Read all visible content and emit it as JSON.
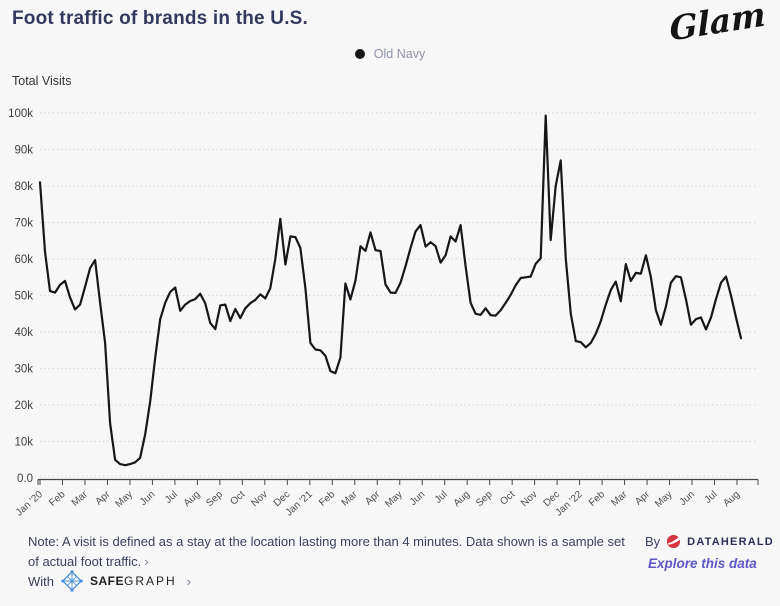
{
  "header": {
    "title": "Foot traffic of brands in the U.S.",
    "brand_logo_text": "Glam"
  },
  "legend": {
    "series_label": "Old Navy",
    "marker_color": "#17171a"
  },
  "chart_data": {
    "type": "line",
    "title": "Foot traffic of brands in the U.S.",
    "ylabel": "Total Visits",
    "x_axis": {
      "tick_labels": [
        "Jan '20",
        "Feb",
        "Mar",
        "Apr",
        "May",
        "Jun",
        "Jul",
        "Aug",
        "Sep",
        "Oct",
        "Nov",
        "Dec",
        "Jan '21",
        "Feb",
        "Mar",
        "Apr",
        "May",
        "Jun",
        "Jul",
        "Aug",
        "Sep",
        "Oct",
        "Nov",
        "Dec",
        "Jan '22",
        "Feb",
        "Mar",
        "Apr",
        "May",
        "Jun",
        "Jul",
        "Aug"
      ]
    },
    "y_axis": {
      "tick_labels": [
        "0.0",
        "10k",
        "20k",
        "30k",
        "40k",
        "50k",
        "60k",
        "70k",
        "80k",
        "90k",
        "100k"
      ],
      "min": 0,
      "max": 100,
      "unit": "thousands of visits"
    },
    "grid": {
      "horizontal_dotted": true,
      "color": "#d7d7e4"
    },
    "series": [
      {
        "name": "Old Navy",
        "color": "#17171a",
        "cadence": "weekly",
        "unit": "thousands of visits",
        "values": [
          81,
          62,
          51.2,
          50.8,
          52.9,
          54,
          49.5,
          46.2,
          47.5,
          52.4,
          57.5,
          59.7,
          48,
          37,
          15,
          5,
          3.8,
          3.5,
          3.8,
          4.3,
          5.5,
          12,
          21,
          33,
          43.5,
          48,
          51,
          52.2,
          45.8,
          47.5,
          48.5,
          49,
          50.5,
          47.9,
          42.5,
          40.8,
          47.3,
          47.5,
          43,
          46.3,
          43.8,
          46.5,
          47.9,
          48.8,
          50.3,
          49.2,
          52,
          60,
          71,
          58.5,
          66.2,
          66,
          63,
          52,
          37,
          35.2,
          35,
          33.5,
          29.3,
          28.7,
          33,
          53.3,
          48.9,
          54,
          63.5,
          62.2,
          67.3,
          62.4,
          62.2,
          53,
          50.8,
          50.7,
          53.5,
          58,
          63,
          67.5,
          69.3,
          63.4,
          64.6,
          63.5,
          59,
          61,
          66.2,
          64.8,
          69.3,
          58,
          48,
          45,
          44.7,
          46.5,
          44.6,
          44.5,
          46,
          48,
          50.2,
          52.8,
          54.8,
          55,
          55.2,
          58.7,
          60.2,
          99.3,
          65.2,
          80,
          87,
          60,
          45,
          37.5,
          37.2,
          35.8,
          37,
          39.5,
          43,
          47.5,
          51.5,
          53.8,
          48.4,
          58.6,
          54,
          56.2,
          56,
          61,
          55,
          46,
          42,
          47,
          53.5,
          55.3,
          55,
          49,
          42,
          43.5,
          44,
          40.7,
          44,
          49,
          53.5,
          55.2,
          50,
          44,
          38.3
        ]
      }
    ]
  },
  "footer": {
    "note_text": "Note: A visit is defined as a stay at the location lasting more than 4 minutes. Data shown is a sample set of actual foot traffic.",
    "note_chevron": "›",
    "with_label": "With",
    "safegraph_bold": "SAFE",
    "safegraph_regular": "GRAPH",
    "safegraph_chevron": "›",
    "by_label": "By",
    "dataherald_label": "DATAHERALD",
    "explore_link": "Explore this data"
  },
  "colors": {
    "background": "#f7f7f8",
    "title": "#33395c",
    "line": "#17171a",
    "grid": "#d7d7e4",
    "axis": "#44464a",
    "legend_text": "#9193a8",
    "note_text": "#3c415c",
    "explore_link": "#5d57c8",
    "dataherald_red": "#d63441",
    "safegraph_blue": "#4a8fd4"
  }
}
